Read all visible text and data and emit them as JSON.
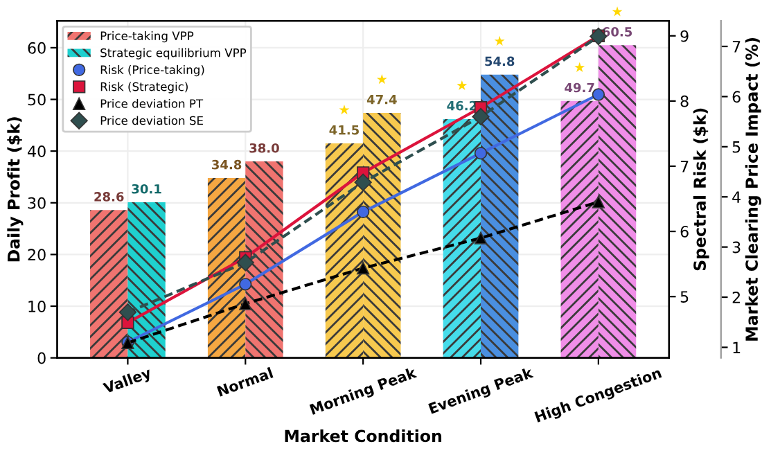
{
  "chart_data": {
    "type": "bar",
    "xlabel": "Market Condition",
    "ylabel": "Daily Profit ($k)",
    "y2label": "Spectral Risk ($k)",
    "y3label": "Market Clearing Price Impact (%)",
    "categories": [
      "Valley",
      "Normal",
      "Morning Peak",
      "Evening Peak",
      "High Congestion"
    ],
    "series": [
      {
        "name": "Price-taking VPP",
        "type": "bar",
        "color": "#f07470",
        "colors": [
          "#f07470",
          "#f5a742",
          "#f7c94f",
          "#45dcea",
          "#f08ee8"
        ],
        "values": [
          28.6,
          34.8,
          41.5,
          46.2,
          49.7
        ],
        "value_labels": [
          "28.6",
          "34.8",
          "41.5",
          "46.2",
          "49.7"
        ]
      },
      {
        "name": "Strategic equilibrium VPP",
        "type": "bar",
        "color": "#1fd0cf",
        "colors": [
          "#1fd0cf",
          "#f07470",
          "#f7c94f",
          "#4a8fe0",
          "#f08ee8"
        ],
        "values": [
          30.1,
          38.0,
          47.4,
          54.8,
          60.5
        ],
        "value_labels": [
          "30.1",
          "38.0",
          "47.4",
          "54.8",
          "60.5"
        ]
      },
      {
        "name": "Risk (Price-taking)",
        "type": "line",
        "axis": "y2",
        "color": "#4169e1",
        "marker": "circle",
        "line_style": "solid",
        "values": [
          4.3,
          5.19,
          6.3,
          7.2,
          8.1
        ]
      },
      {
        "name": "Risk (Strategic)",
        "type": "line",
        "axis": "y2",
        "color": "#dc143c",
        "marker": "square",
        "line_style": "solid",
        "values": [
          4.6,
          5.6,
          6.9,
          7.9,
          9.0
        ]
      },
      {
        "name": "Price deviation PT",
        "type": "line",
        "axis": "y3",
        "color": "#000000",
        "marker": "triangle",
        "line_style": "dashed",
        "values": [
          1.09,
          1.87,
          2.58,
          3.18,
          3.9
        ]
      },
      {
        "name": "Price deviation SE",
        "type": "line",
        "axis": "y3",
        "color": "#2f4f4f",
        "marker": "diamond",
        "line_style": "dashed",
        "values": [
          1.7,
          2.69,
          4.29,
          5.6,
          7.2
        ]
      }
    ],
    "annotations": [
      "★",
      "★",
      "★",
      "★",
      "★",
      "★"
    ],
    "ylim": [
      0,
      65.2
    ],
    "yticks": [
      0,
      10,
      20,
      30,
      40,
      50,
      60
    ],
    "y2lim": [
      4.06,
      9.23
    ],
    "y2ticks": [
      5,
      6,
      7,
      8,
      9
    ],
    "y3lim": [
      0.79,
      7.51
    ],
    "y3ticks": [
      1,
      2,
      3,
      4,
      5,
      6,
      7
    ],
    "grid": true,
    "legend": "top left"
  }
}
